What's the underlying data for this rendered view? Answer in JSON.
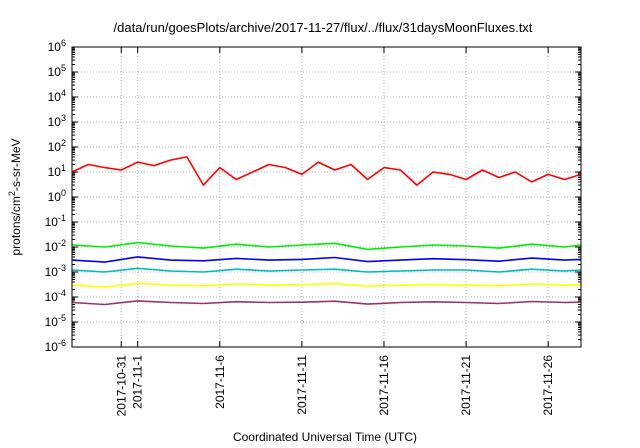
{
  "chart_data": {
    "type": "line",
    "title": "/data/run/goesPlots/archive/2017-11-27/flux/../flux/31daysMoonFluxes.txt",
    "xlabel": "Coordinated Universal Time (UTC)",
    "ylabel": {
      "prefix": "protons/cm",
      "sup": "2",
      "suffix": "-s-sr-MeV"
    },
    "yscale": "log",
    "ylim": [
      1e-06,
      1000000.0
    ],
    "y_ticks": [
      {
        "base": "10",
        "exp": "-6",
        "value": -6
      },
      {
        "base": "10",
        "exp": "-5",
        "value": -5
      },
      {
        "base": "10",
        "exp": "-4",
        "value": -4
      },
      {
        "base": "10",
        "exp": "-3",
        "value": -3
      },
      {
        "base": "10",
        "exp": "-2",
        "value": -2
      },
      {
        "base": "10",
        "exp": "-1",
        "value": -1
      },
      {
        "base": "10",
        "exp": "0",
        "value": 0
      },
      {
        "base": "10",
        "exp": "1",
        "value": 1
      },
      {
        "base": "10",
        "exp": "2",
        "value": 2
      },
      {
        "base": "10",
        "exp": "3",
        "value": 3
      },
      {
        "base": "10",
        "exp": "4",
        "value": 4
      },
      {
        "base": "10",
        "exp": "5",
        "value": 5
      },
      {
        "base": "10",
        "exp": "6",
        "value": 6
      }
    ],
    "xlim": [
      "2017-10-28",
      "2017-11-28"
    ],
    "x_ticks": [
      "2017-10-31",
      "2017-11-1",
      "2017-11-6",
      "2017-11-11",
      "2017-11-16",
      "2017-11-21",
      "2017-11-26"
    ],
    "x_tick_days": [
      3,
      4,
      9,
      14,
      19,
      24,
      29
    ],
    "x_domain_days": [
      0,
      31
    ],
    "grid": true,
    "series": [
      {
        "color": "#ff0000",
        "x": [
          "2017-10-28",
          "2017-10-29",
          "2017-10-30",
          "2017-10-31",
          "2017-11-01",
          "2017-11-02",
          "2017-11-03",
          "2017-11-04",
          "2017-11-05",
          "2017-11-06",
          "2017-11-07",
          "2017-11-08",
          "2017-11-09",
          "2017-11-10",
          "2017-11-11",
          "2017-11-12",
          "2017-11-13",
          "2017-11-14",
          "2017-11-15",
          "2017-11-16",
          "2017-11-17",
          "2017-11-18",
          "2017-11-19",
          "2017-11-20",
          "2017-11-21",
          "2017-11-22",
          "2017-11-23",
          "2017-11-24",
          "2017-11-25",
          "2017-11-26",
          "2017-11-27",
          "2017-11-28"
        ],
        "y": [
          10,
          20,
          15,
          12,
          25,
          18,
          30,
          40,
          3,
          15,
          5,
          10,
          20,
          15,
          8,
          25,
          12,
          20,
          5,
          15,
          12,
          3,
          10,
          8,
          5,
          12,
          6,
          10,
          4,
          8,
          5,
          8
        ]
      },
      {
        "color": "#00ee00",
        "x": [
          "2017-10-28",
          "2017-10-30",
          "2017-11-01",
          "2017-11-03",
          "2017-11-05",
          "2017-11-07",
          "2017-11-09",
          "2017-11-11",
          "2017-11-13",
          "2017-11-15",
          "2017-11-17",
          "2017-11-19",
          "2017-11-21",
          "2017-11-23",
          "2017-11-25",
          "2017-11-27",
          "2017-11-28"
        ],
        "y": [
          0.012,
          0.01,
          0.015,
          0.011,
          0.009,
          0.013,
          0.01,
          0.012,
          0.014,
          0.008,
          0.01,
          0.012,
          0.011,
          0.009,
          0.013,
          0.01,
          0.012
        ]
      },
      {
        "color": "#0000ff",
        "x": [
          "2017-10-28",
          "2017-10-30",
          "2017-11-01",
          "2017-11-03",
          "2017-11-05",
          "2017-11-07",
          "2017-11-09",
          "2017-11-11",
          "2017-11-13",
          "2017-11-15",
          "2017-11-17",
          "2017-11-19",
          "2017-11-21",
          "2017-11-23",
          "2017-11-25",
          "2017-11-27",
          "2017-11-28"
        ],
        "y": [
          0.003,
          0.0025,
          0.004,
          0.003,
          0.0028,
          0.0035,
          0.003,
          0.0032,
          0.0038,
          0.0026,
          0.003,
          0.0034,
          0.0031,
          0.0027,
          0.0036,
          0.003,
          0.0032
        ]
      },
      {
        "color": "#00bbbb",
        "x": [
          "2017-10-28",
          "2017-10-30",
          "2017-11-01",
          "2017-11-03",
          "2017-11-05",
          "2017-11-07",
          "2017-11-09",
          "2017-11-11",
          "2017-11-13",
          "2017-11-15",
          "2017-11-17",
          "2017-11-19",
          "2017-11-21",
          "2017-11-23",
          "2017-11-25",
          "2017-11-27",
          "2017-11-28"
        ],
        "y": [
          0.0012,
          0.001,
          0.0014,
          0.0011,
          0.001,
          0.0013,
          0.0011,
          0.0012,
          0.0013,
          0.001,
          0.0011,
          0.0012,
          0.0012,
          0.001,
          0.0013,
          0.0011,
          0.0012
        ]
      },
      {
        "color": "#ffff00",
        "x": [
          "2017-10-28",
          "2017-10-30",
          "2017-11-01",
          "2017-11-03",
          "2017-11-05",
          "2017-11-07",
          "2017-11-09",
          "2017-11-11",
          "2017-11-13",
          "2017-11-15",
          "2017-11-17",
          "2017-11-19",
          "2017-11-21",
          "2017-11-23",
          "2017-11-25",
          "2017-11-27",
          "2017-11-28"
        ],
        "y": [
          0.0003,
          0.00025,
          0.00035,
          0.0003,
          0.00028,
          0.00033,
          0.0003,
          0.00031,
          0.00034,
          0.00027,
          0.0003,
          0.00032,
          0.0003,
          0.00028,
          0.00033,
          0.0003,
          0.00031
        ]
      },
      {
        "color": "#993366",
        "x": [
          "2017-10-28",
          "2017-10-30",
          "2017-11-01",
          "2017-11-03",
          "2017-11-05",
          "2017-11-07",
          "2017-11-09",
          "2017-11-11",
          "2017-11-13",
          "2017-11-15",
          "2017-11-17",
          "2017-11-19",
          "2017-11-21",
          "2017-11-23",
          "2017-11-25",
          "2017-11-27",
          "2017-11-28"
        ],
        "y": [
          6e-05,
          5e-05,
          7e-05,
          6e-05,
          5.5e-05,
          6.5e-05,
          6e-05,
          6.2e-05,
          6.8e-05,
          5.2e-05,
          6e-05,
          6.4e-05,
          6e-05,
          5.5e-05,
          6.6e-05,
          6e-05,
          6.2e-05
        ]
      }
    ]
  }
}
